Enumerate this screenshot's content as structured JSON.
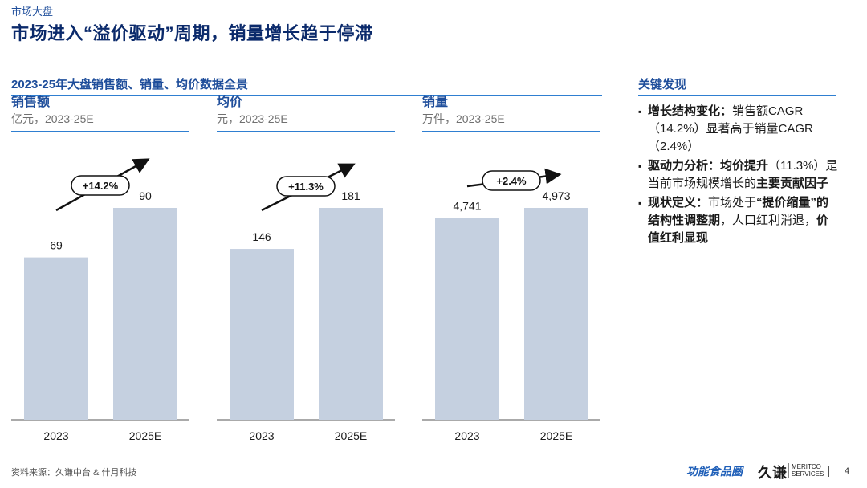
{
  "section_tag": "市场大盘",
  "title": "市场进入“溢价驱动”周期，销量增长趋于停滞",
  "left_header": "2023-25年大盘销售额、销量、均价数据全景",
  "right_header": "关键发现",
  "chart_data": [
    {
      "type": "bar",
      "title": "销售额",
      "subtitle": "亿元，2023-25E",
      "categories": [
        "2023",
        "2025E"
      ],
      "values": [
        69,
        90
      ],
      "value_labels": [
        "69",
        "90"
      ],
      "growth_label": "+14.2%",
      "bar_color": "#c5d0e0"
    },
    {
      "type": "bar",
      "title": "均价",
      "subtitle": "元，2023-25E",
      "categories": [
        "2023",
        "2025E"
      ],
      "values": [
        146,
        181
      ],
      "value_labels": [
        "146",
        "181"
      ],
      "growth_label": "+11.3%",
      "bar_color": "#c5d0e0"
    },
    {
      "type": "bar",
      "title": "销量",
      "subtitle": "万件，2023-25E",
      "categories": [
        "2023",
        "2025E"
      ],
      "values": [
        4741,
        4973
      ],
      "value_labels": [
        "4,741",
        "4,973"
      ],
      "growth_label": "+2.4%",
      "bar_color": "#c5d0e0"
    }
  ],
  "findings": [
    {
      "label": "增长结构变化：",
      "text": "销售额CAGR（14.2%）显著高于销量CAGR（2.4%）"
    },
    {
      "label": "驱动力分析：均价提升",
      "text": "（11.3%）是当前市场规模增长的",
      "bold_tail": "主要贡献因子"
    },
    {
      "label": "现状定义：",
      "text": "市场处于",
      "bold_mid": "“提价缩量”的结构性调整期",
      "text2": "，人口红利消退，",
      "bold_tail": "价值红利显现"
    }
  ],
  "source": "资料来源：久谦中台 & 什月科技",
  "logos": {
    "brand1": "功能食品圈",
    "brand2": "久谦",
    "brand3_line1": "MERITCO",
    "brand3_line2": "SERVICES"
  },
  "page_number": "4",
  "colors": {
    "accent": "#1f4e9b",
    "rule": "#2f7fd1",
    "bar": "#c5d0e0"
  }
}
